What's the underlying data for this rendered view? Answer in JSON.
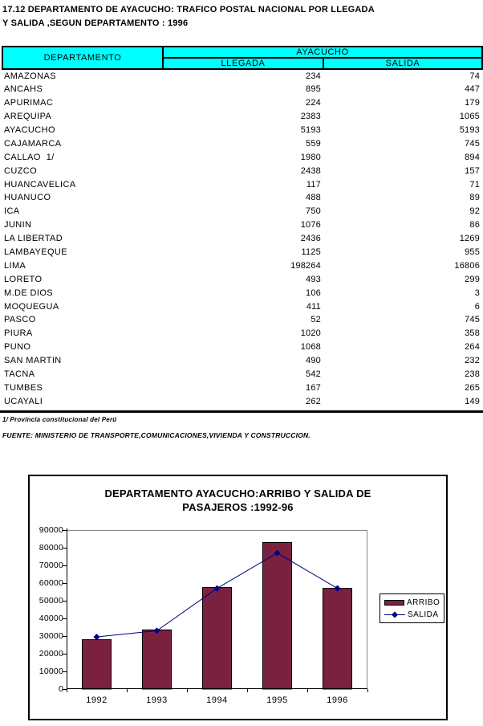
{
  "page_title": {
    "line1": "17.12 DEPARTAMENTO DE AYACUCHO: TRAFICO POSTAL NACIONAL POR LLEGADA",
    "line2": "Y SALIDA ,SEGUN DEPARTAMENTO : 1996"
  },
  "table": {
    "header": {
      "departamento": "DEPARTAMENTO",
      "group": "AYACUCHO",
      "col1": "LLEGADA",
      "col2": "SALIDA"
    },
    "rows": [
      {
        "name": "AMAZONAS",
        "llegada": "234",
        "salida": "74"
      },
      {
        "name": "ANCAHS",
        "llegada": "895",
        "salida": "447"
      },
      {
        "name": "APURIMAC",
        "llegada": "224",
        "salida": "179"
      },
      {
        "name": "AREQUIPA",
        "llegada": "2383",
        "salida": "1065"
      },
      {
        "name": "AYACUCHO",
        "llegada": "5193",
        "salida": "5193"
      },
      {
        "name": "CAJAMARCA",
        "llegada": "559",
        "salida": "745"
      },
      {
        "name": "CALLAO  1/",
        "llegada": "1980",
        "salida": "894"
      },
      {
        "name": "CUZCO",
        "llegada": "2438",
        "salida": "157"
      },
      {
        "name": "HUANCAVELICA",
        "llegada": "117",
        "salida": "71"
      },
      {
        "name": "HUANUCO",
        "llegada": "488",
        "salida": "89"
      },
      {
        "name": "ICA",
        "llegada": "750",
        "salida": "92"
      },
      {
        "name": "JUNIN",
        "llegada": "1076",
        "salida": "86"
      },
      {
        "name": "LA LIBERTAD",
        "llegada": "2436",
        "salida": "1269"
      },
      {
        "name": "LAMBAYEQUE",
        "llegada": "1125",
        "salida": "955"
      },
      {
        "name": "LIMA",
        "llegada": "198264",
        "salida": "16806"
      },
      {
        "name": "LORETO",
        "llegada": "493",
        "salida": "299"
      },
      {
        "name": "M.DE DIOS",
        "llegada": "106",
        "salida": "3"
      },
      {
        "name": "MOQUEGUA",
        "llegada": "411",
        "salida": "6"
      },
      {
        "name": "PASCO",
        "llegada": "52",
        "salida": "745"
      },
      {
        "name": "PIURA",
        "llegada": "1020",
        "salida": "358"
      },
      {
        "name": "PUNO",
        "llegada": "1068",
        "salida": "264"
      },
      {
        "name": "SAN MARTIN",
        "llegada": "490",
        "salida": "232"
      },
      {
        "name": "TACNA",
        "llegada": "542",
        "salida": "238"
      },
      {
        "name": "TUMBES",
        "llegada": "167",
        "salida": "265"
      },
      {
        "name": "UCAYALI",
        "llegada": "262",
        "salida": "149"
      }
    ]
  },
  "footnotes": {
    "note1": "1/ Provincia constitucional del Perú",
    "source": "FUENTE: MINISTERIO DE TRANSPORTE,COMUNICACIONES,VIVIENDA Y CONSTRUCCION."
  },
  "chart_data": {
    "type": "bar",
    "title_line1": "DEPARTAMENTO AYACUCHO:ARRIBO Y SALIDA DE",
    "title_line2": "PASAJEROS :1992-96",
    "categories": [
      "1992",
      "1993",
      "1994",
      "1995",
      "1996"
    ],
    "series": [
      {
        "name": "ARRIBO",
        "type": "bar",
        "color": "#7B2140",
        "values": [
          28000,
          33500,
          57500,
          83000,
          57000
        ]
      },
      {
        "name": "SALIDA",
        "type": "line",
        "color": "#000080",
        "values": [
          29500,
          33000,
          57000,
          77000,
          57000
        ]
      }
    ],
    "xlabel": "",
    "ylabel": "",
    "ylim": [
      0,
      90000
    ],
    "ytick_step": 10000,
    "grid": false,
    "legend_position": "right"
  },
  "colors": {
    "header_bg": "#00FFFF",
    "bar_fill": "#7B2140",
    "line_color": "#000080",
    "plot_border": "#888888"
  }
}
